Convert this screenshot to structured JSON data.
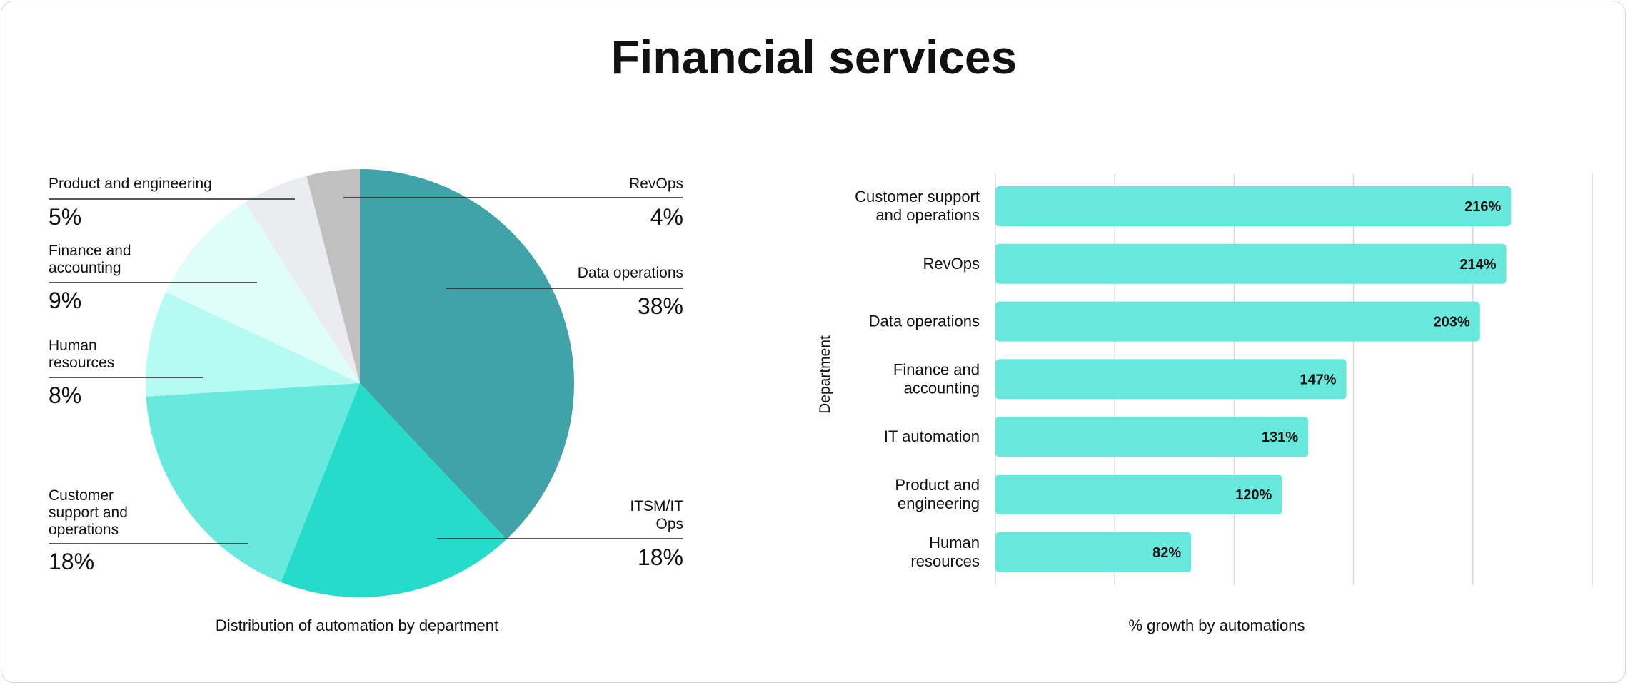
{
  "title": "Financial services",
  "colors": {
    "bar": "#67e8dd",
    "pie": [
      "#40a3a8",
      "#25dccb",
      "#68e9dd",
      "#b5fbf4",
      "#e1fdfb",
      "#ebecef",
      "#c0c0c0"
    ],
    "grid": "#d9d9d9",
    "text": "#111111"
  },
  "chart_data": [
    {
      "type": "pie",
      "title": "",
      "caption": "Distribution of automation by department",
      "slices": [
        {
          "label": "Data operations",
          "label_lines": [
            "Data operations"
          ],
          "value": 38,
          "value_label": "38%"
        },
        {
          "label": "ITSM/IT Ops",
          "label_lines": [
            "ITSM/IT",
            "Ops"
          ],
          "value": 18,
          "value_label": "18%"
        },
        {
          "label": "Customer support and operations",
          "label_lines": [
            "Customer",
            "support and",
            "operations"
          ],
          "value": 18,
          "value_label": "18%"
        },
        {
          "label": "Human resources",
          "label_lines": [
            "Human",
            "resources"
          ],
          "value": 8,
          "value_label": "8%"
        },
        {
          "label": "Finance and accounting",
          "label_lines": [
            "Finance and",
            "accounting"
          ],
          "value": 9,
          "value_label": "9%"
        },
        {
          "label": "Product and engineering",
          "label_lines": [
            "Product and engineering"
          ],
          "value": 5,
          "value_label": "5%"
        },
        {
          "label": "RevOps",
          "label_lines": [
            "RevOps"
          ],
          "value": 4,
          "value_label": "4%"
        }
      ]
    },
    {
      "type": "bar",
      "orientation": "horizontal",
      "caption": "% growth by automations",
      "ylabel": "Department",
      "xlim": [
        0,
        250
      ],
      "grid": true,
      "categories": [
        {
          "label": "Customer support and operations",
          "lines": [
            "Customer support",
            "and operations"
          ]
        },
        {
          "label": "RevOps",
          "lines": [
            "RevOps"
          ]
        },
        {
          "label": "Data operations",
          "lines": [
            "Data operations"
          ]
        },
        {
          "label": "Finance and accounting",
          "lines": [
            "Finance and",
            "accounting"
          ]
        },
        {
          "label": "IT automation",
          "lines": [
            "IT automation"
          ]
        },
        {
          "label": "Product and engineering",
          "lines": [
            "Product and",
            "engineering"
          ]
        },
        {
          "label": "Human resources",
          "lines": [
            "Human",
            "resources"
          ]
        }
      ],
      "values": [
        216,
        214,
        203,
        147,
        131,
        120,
        82
      ],
      "value_labels": [
        "216%",
        "214%",
        "203%",
        "147%",
        "131%",
        "120%",
        "82%"
      ]
    }
  ]
}
